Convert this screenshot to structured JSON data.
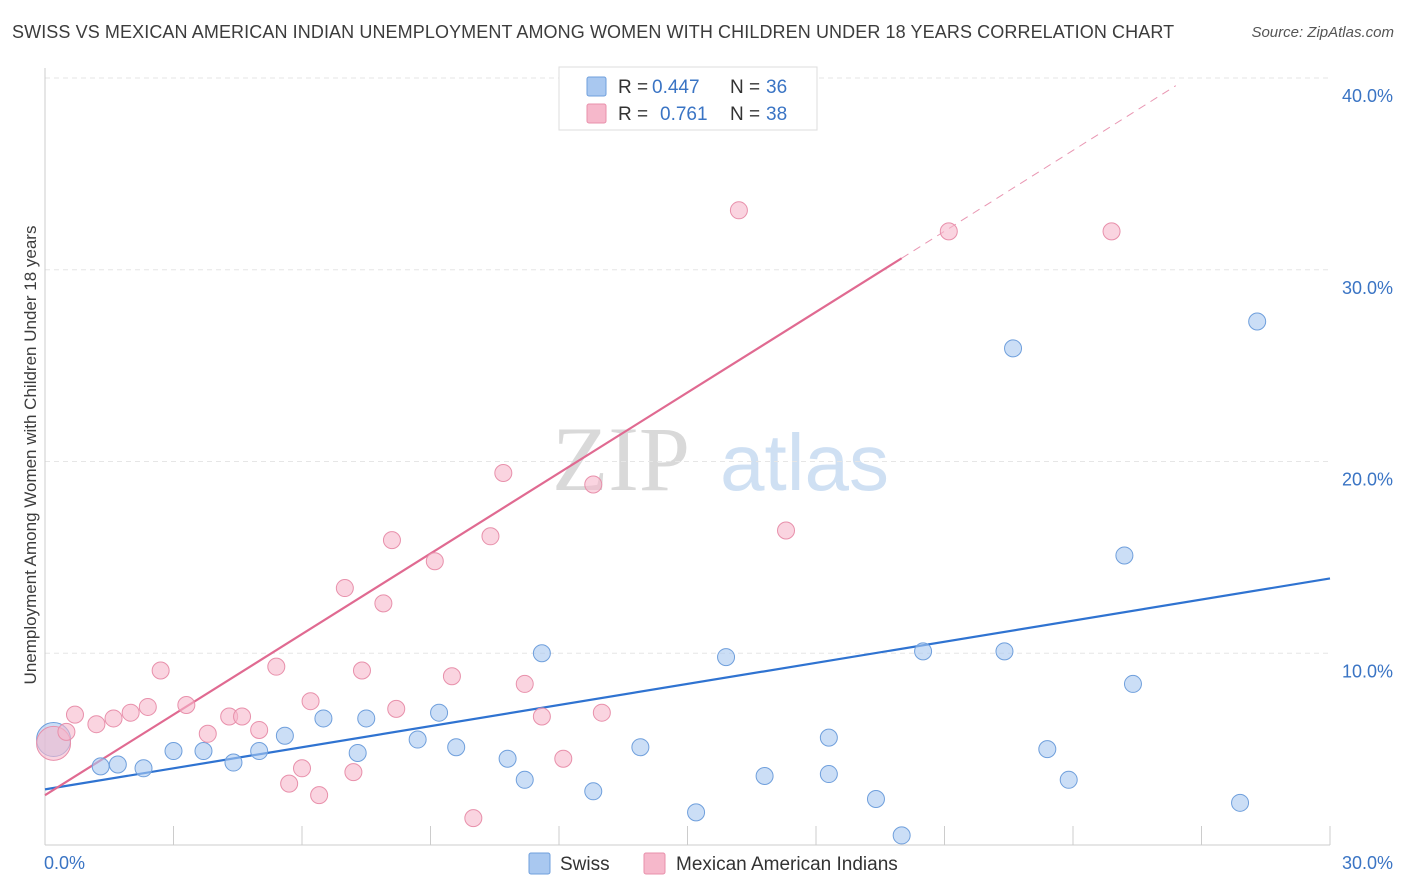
{
  "title": "SWISS VS MEXICAN AMERICAN INDIAN UNEMPLOYMENT AMONG WOMEN WITH CHILDREN UNDER 18 YEARS CORRELATION CHART",
  "source": "Source: ZipAtlas.com",
  "watermark": {
    "zip": "ZIP",
    "atlas": "atlas"
  },
  "legend": {
    "rows": [
      {
        "r_label": "R =",
        "r_value": "0.447",
        "n_label": "N =",
        "n_value": "36",
        "color": "#a9c8f0"
      },
      {
        "r_label": "R =",
        "r_value": "0.761",
        "n_label": "N =",
        "n_value": "38",
        "color": "#f6b8cb"
      }
    ]
  },
  "bottom_legend": {
    "swiss": "Swiss",
    "mexican": "Mexican American Indians"
  },
  "chart_data": {
    "type": "scatter",
    "title": "SWISS VS MEXICAN AMERICAN INDIAN UNEMPLOYMENT AMONG WOMEN WITH CHILDREN UNDER 18 YEARS CORRELATION CHART",
    "xlabel": "",
    "ylabel": "Unemployment Among Women with Children Under 18 years",
    "xlim": [
      0,
      30
    ],
    "ylim": [
      0,
      40
    ],
    "x_tick_labels": [
      "0.0%",
      "30.0%"
    ],
    "y_ticks": [
      10,
      20,
      30,
      40
    ],
    "y_tick_labels": [
      "10.0%",
      "20.0%",
      "30.0%",
      "40.0%"
    ],
    "grid": true,
    "legend_position": "top-center",
    "series": [
      {
        "name": "Swiss",
        "color": "#a9c8f0",
        "stroke": "#6f9fdc",
        "trend_color": "#2f73d1",
        "trend": {
          "x0": 0,
          "y0": 2.9,
          "x1": 30,
          "y1": 13.9
        },
        "points": [
          [
            0.2,
            5.5
          ],
          [
            1.3,
            4.1
          ],
          [
            1.7,
            4.2
          ],
          [
            2.3,
            4.0
          ],
          [
            3.0,
            4.9
          ],
          [
            3.7,
            4.9
          ],
          [
            4.4,
            4.3
          ],
          [
            5.0,
            4.9
          ],
          [
            5.6,
            5.7
          ],
          [
            6.5,
            6.6
          ],
          [
            7.3,
            4.8
          ],
          [
            7.5,
            6.6
          ],
          [
            8.7,
            5.5
          ],
          [
            9.2,
            6.9
          ],
          [
            9.6,
            5.1
          ],
          [
            10.8,
            4.5
          ],
          [
            11.2,
            3.4
          ],
          [
            11.6,
            10.0
          ],
          [
            12.8,
            2.8
          ],
          [
            13.9,
            5.1
          ],
          [
            15.2,
            1.7
          ],
          [
            15.9,
            9.8
          ],
          [
            16.8,
            3.6
          ],
          [
            18.3,
            3.7
          ],
          [
            18.3,
            5.6
          ],
          [
            19.4,
            2.4
          ],
          [
            20.0,
            0.5
          ],
          [
            20.5,
            10.1
          ],
          [
            22.4,
            10.1
          ],
          [
            22.6,
            25.9
          ],
          [
            23.4,
            5.0
          ],
          [
            23.9,
            3.4
          ],
          [
            25.2,
            15.1
          ],
          [
            25.4,
            8.4
          ],
          [
            27.9,
            2.2
          ],
          [
            28.3,
            27.3
          ]
        ]
      },
      {
        "name": "Mexican American Indians",
        "color": "#f6b8cb",
        "stroke": "#e890ab",
        "trend_color": "#e06a91",
        "trend": {
          "x0": 0,
          "y0": 2.6,
          "x1": 20.0,
          "y1": 30.6,
          "dash_to_x": 26.4,
          "dash_to_y": 39.6
        },
        "points": [
          [
            0.2,
            5.3
          ],
          [
            0.5,
            5.9
          ],
          [
            0.7,
            6.8
          ],
          [
            1.2,
            6.3
          ],
          [
            1.6,
            6.6
          ],
          [
            2.0,
            6.9
          ],
          [
            2.4,
            7.2
          ],
          [
            2.7,
            9.1
          ],
          [
            3.3,
            7.3
          ],
          [
            3.8,
            5.8
          ],
          [
            4.3,
            6.7
          ],
          [
            4.6,
            6.7
          ],
          [
            5.0,
            6.0
          ],
          [
            5.4,
            9.3
          ],
          [
            5.7,
            3.2
          ],
          [
            6.0,
            4.0
          ],
          [
            6.2,
            7.5
          ],
          [
            6.4,
            2.6
          ],
          [
            7.0,
            13.4
          ],
          [
            7.2,
            3.8
          ],
          [
            7.4,
            9.1
          ],
          [
            7.9,
            12.6
          ],
          [
            8.1,
            15.9
          ],
          [
            8.2,
            7.1
          ],
          [
            9.1,
            14.8
          ],
          [
            9.5,
            8.8
          ],
          [
            10.0,
            1.4
          ],
          [
            10.4,
            16.1
          ],
          [
            10.7,
            19.4
          ],
          [
            11.2,
            8.4
          ],
          [
            11.6,
            6.7
          ],
          [
            12.1,
            4.5
          ],
          [
            12.8,
            18.8
          ],
          [
            13.0,
            6.9
          ],
          [
            16.2,
            33.1
          ],
          [
            17.3,
            16.4
          ],
          [
            21.1,
            32.0
          ],
          [
            24.9,
            32.0
          ]
        ]
      }
    ]
  }
}
